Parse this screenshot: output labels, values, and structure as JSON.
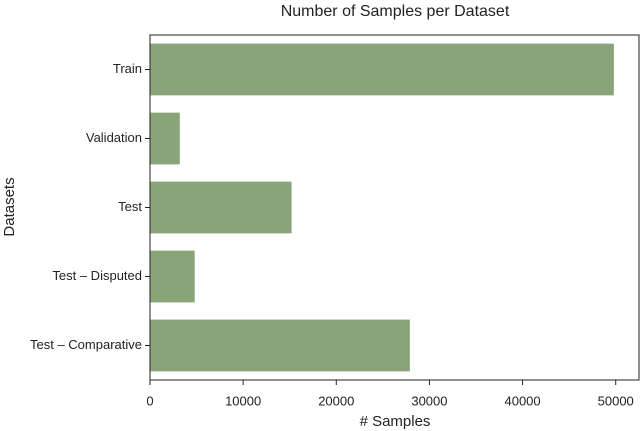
{
  "chart_data": {
    "type": "hbar",
    "title": "Number of Samples per Dataset",
    "x_label": "# Samples",
    "y_label": "Datasets",
    "categories": [
      "Train",
      "Validation",
      "Test",
      "Test – Disputed",
      "Test – Comparative"
    ],
    "values": [
      49800,
      3200,
      15200,
      4800,
      27900
    ],
    "color": "#8aa47a",
    "xlim": [
      0,
      52500
    ],
    "xticks": [
      0,
      10000,
      20000,
      30000,
      40000,
      50000
    ]
  }
}
